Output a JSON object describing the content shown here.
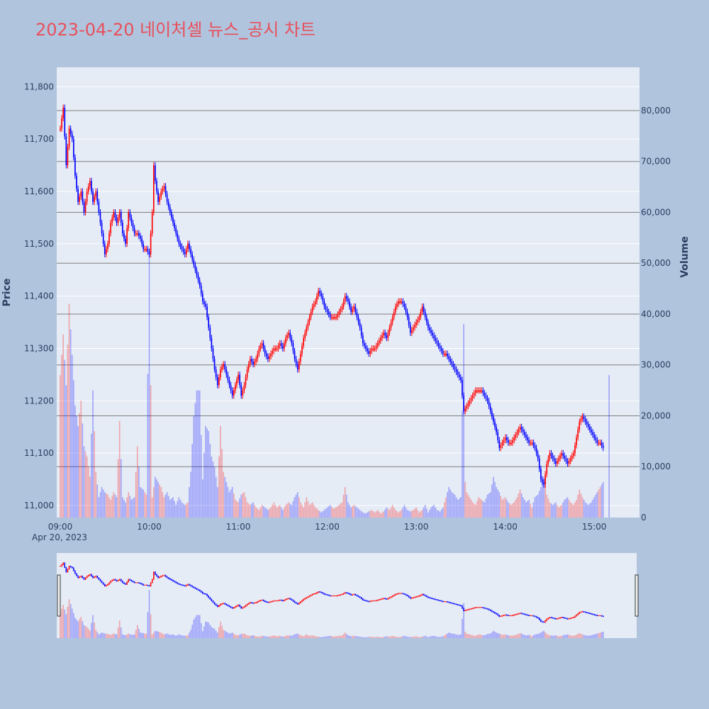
{
  "title": "2023-04-20 네이처셀 뉴스_공시 차트",
  "colors": {
    "background": "#b0c4de",
    "plot_bg": "#e5ecf6",
    "up": "#ff0000",
    "down": "#0000ff",
    "grid": "#ffffff",
    "vol_grid": "#808080",
    "title": "#e8505b"
  },
  "chart_data": {
    "type": "candlestick+volume",
    "date_label": "Apr 20, 2023",
    "x_ticks": [
      "09:00",
      "10:00",
      "11:00",
      "12:00",
      "13:00",
      "14:00",
      "15:00"
    ],
    "ylabel": "Price",
    "y2label": "Volume",
    "price_ticks": [
      11000,
      11100,
      11200,
      11300,
      11400,
      11500,
      11600,
      11700,
      11800
    ],
    "price_tick_labels": [
      "11,000",
      "11,100",
      "11,200",
      "11,300",
      "11,400",
      "11,500",
      "11,600",
      "11,700",
      "11,800"
    ],
    "volume_ticks": [
      0,
      10000,
      20000,
      30000,
      40000,
      50000,
      60000,
      70000,
      80000
    ],
    "volume_tick_labels": [
      "0",
      "10,000",
      "20,000",
      "30,000",
      "40,000",
      "50,000",
      "60,000",
      "70,000",
      "80,000"
    ],
    "price_range": [
      10977,
      11837
    ],
    "volume_range": [
      0,
      88500
    ],
    "session_minutes": [
      0,
      380
    ],
    "price_keypoints": [
      [
        0,
        11720
      ],
      [
        2,
        11760
      ],
      [
        4,
        11650
      ],
      [
        6,
        11720
      ],
      [
        8,
        11700
      ],
      [
        10,
        11630
      ],
      [
        12,
        11580
      ],
      [
        14,
        11600
      ],
      [
        16,
        11560
      ],
      [
        18,
        11600
      ],
      [
        20,
        11620
      ],
      [
        22,
        11580
      ],
      [
        24,
        11600
      ],
      [
        26,
        11560
      ],
      [
        28,
        11520
      ],
      [
        30,
        11480
      ],
      [
        32,
        11500
      ],
      [
        34,
        11540
      ],
      [
        36,
        11560
      ],
      [
        38,
        11540
      ],
      [
        40,
        11560
      ],
      [
        42,
        11520
      ],
      [
        44,
        11500
      ],
      [
        46,
        11560
      ],
      [
        48,
        11540
      ],
      [
        50,
        11520
      ],
      [
        52,
        11520
      ],
      [
        54,
        11510
      ],
      [
        56,
        11490
      ],
      [
        58,
        11490
      ],
      [
        60,
        11480
      ],
      [
        62,
        11560
      ],
      [
        63,
        11650
      ],
      [
        64,
        11620
      ],
      [
        66,
        11580
      ],
      [
        68,
        11600
      ],
      [
        70,
        11610
      ],
      [
        72,
        11580
      ],
      [
        74,
        11560
      ],
      [
        76,
        11540
      ],
      [
        78,
        11520
      ],
      [
        80,
        11500
      ],
      [
        82,
        11490
      ],
      [
        84,
        11480
      ],
      [
        86,
        11500
      ],
      [
        88,
        11480
      ],
      [
        90,
        11460
      ],
      [
        92,
        11440
      ],
      [
        94,
        11420
      ],
      [
        96,
        11390
      ],
      [
        98,
        11380
      ],
      [
        100,
        11340
      ],
      [
        102,
        11300
      ],
      [
        104,
        11260
      ],
      [
        106,
        11230
      ],
      [
        108,
        11260
      ],
      [
        110,
        11270
      ],
      [
        112,
        11250
      ],
      [
        114,
        11230
      ],
      [
        116,
        11210
      ],
      [
        118,
        11230
      ],
      [
        120,
        11250
      ],
      [
        122,
        11210
      ],
      [
        124,
        11230
      ],
      [
        126,
        11260
      ],
      [
        128,
        11280
      ],
      [
        130,
        11270
      ],
      [
        132,
        11280
      ],
      [
        134,
        11300
      ],
      [
        136,
        11310
      ],
      [
        138,
        11290
      ],
      [
        140,
        11280
      ],
      [
        142,
        11290
      ],
      [
        144,
        11300
      ],
      [
        146,
        11300
      ],
      [
        148,
        11310
      ],
      [
        150,
        11300
      ],
      [
        152,
        11320
      ],
      [
        154,
        11330
      ],
      [
        156,
        11310
      ],
      [
        158,
        11280
      ],
      [
        160,
        11260
      ],
      [
        162,
        11290
      ],
      [
        164,
        11320
      ],
      [
        166,
        11340
      ],
      [
        168,
        11360
      ],
      [
        170,
        11380
      ],
      [
        172,
        11390
      ],
      [
        174,
        11410
      ],
      [
        176,
        11400
      ],
      [
        178,
        11380
      ],
      [
        180,
        11370
      ],
      [
        182,
        11360
      ],
      [
        184,
        11360
      ],
      [
        186,
        11360
      ],
      [
        188,
        11370
      ],
      [
        190,
        11380
      ],
      [
        192,
        11400
      ],
      [
        194,
        11390
      ],
      [
        196,
        11370
      ],
      [
        198,
        11380
      ],
      [
        200,
        11360
      ],
      [
        202,
        11340
      ],
      [
        204,
        11310
      ],
      [
        206,
        11300
      ],
      [
        208,
        11290
      ],
      [
        210,
        11300
      ],
      [
        212,
        11300
      ],
      [
        214,
        11310
      ],
      [
        216,
        11320
      ],
      [
        218,
        11330
      ],
      [
        220,
        11320
      ],
      [
        222,
        11340
      ],
      [
        224,
        11360
      ],
      [
        226,
        11380
      ],
      [
        228,
        11390
      ],
      [
        230,
        11390
      ],
      [
        232,
        11380
      ],
      [
        234,
        11360
      ],
      [
        236,
        11330
      ],
      [
        238,
        11340
      ],
      [
        240,
        11350
      ],
      [
        242,
        11360
      ],
      [
        244,
        11380
      ],
      [
        246,
        11360
      ],
      [
        248,
        11340
      ],
      [
        250,
        11330
      ],
      [
        252,
        11320
      ],
      [
        254,
        11310
      ],
      [
        256,
        11300
      ],
      [
        258,
        11290
      ],
      [
        260,
        11290
      ],
      [
        262,
        11280
      ],
      [
        264,
        11270
      ],
      [
        266,
        11260
      ],
      [
        268,
        11250
      ],
      [
        270,
        11240
      ],
      [
        272,
        11180
      ],
      [
        274,
        11190
      ],
      [
        276,
        11200
      ],
      [
        278,
        11210
      ],
      [
        280,
        11220
      ],
      [
        282,
        11220
      ],
      [
        284,
        11220
      ],
      [
        286,
        11210
      ],
      [
        288,
        11200
      ],
      [
        290,
        11180
      ],
      [
        292,
        11160
      ],
      [
        294,
        11140
      ],
      [
        296,
        11110
      ],
      [
        298,
        11120
      ],
      [
        300,
        11130
      ],
      [
        302,
        11120
      ],
      [
        304,
        11120
      ],
      [
        306,
        11130
      ],
      [
        308,
        11140
      ],
      [
        310,
        11150
      ],
      [
        312,
        11140
      ],
      [
        314,
        11130
      ],
      [
        316,
        11120
      ],
      [
        318,
        11120
      ],
      [
        320,
        11110
      ],
      [
        322,
        11090
      ],
      [
        324,
        11050
      ],
      [
        326,
        11040
      ],
      [
        328,
        11080
      ],
      [
        330,
        11100
      ],
      [
        332,
        11090
      ],
      [
        334,
        11080
      ],
      [
        336,
        11090
      ],
      [
        338,
        11100
      ],
      [
        340,
        11090
      ],
      [
        342,
        11080
      ],
      [
        344,
        11090
      ],
      [
        346,
        11100
      ],
      [
        348,
        11130
      ],
      [
        350,
        11160
      ],
      [
        352,
        11170
      ],
      [
        354,
        11160
      ],
      [
        356,
        11150
      ],
      [
        358,
        11140
      ],
      [
        360,
        11130
      ],
      [
        362,
        11120
      ],
      [
        364,
        11120
      ],
      [
        366,
        11110
      ]
    ],
    "volume_keypoints": [
      [
        0,
        28000
      ],
      [
        2,
        36000
      ],
      [
        4,
        26000
      ],
      [
        6,
        42000
      ],
      [
        8,
        32000
      ],
      [
        10,
        22000
      ],
      [
        12,
        18000
      ],
      [
        14,
        23000
      ],
      [
        16,
        14000
      ],
      [
        18,
        12000
      ],
      [
        20,
        8000
      ],
      [
        22,
        25000
      ],
      [
        24,
        9000
      ],
      [
        26,
        4000
      ],
      [
        28,
        6000
      ],
      [
        30,
        5000
      ],
      [
        32,
        4500
      ],
      [
        34,
        3500
      ],
      [
        36,
        5000
      ],
      [
        38,
        4000
      ],
      [
        40,
        19000
      ],
      [
        42,
        4000
      ],
      [
        44,
        3000
      ],
      [
        46,
        5000
      ],
      [
        48,
        3500
      ],
      [
        50,
        4000
      ],
      [
        52,
        14000
      ],
      [
        54,
        6000
      ],
      [
        56,
        5500
      ],
      [
        58,
        4500
      ],
      [
        60,
        52000
      ],
      [
        61,
        26000
      ],
      [
        62,
        4000
      ],
      [
        64,
        8000
      ],
      [
        66,
        7000
      ],
      [
        68,
        6000
      ],
      [
        70,
        4000
      ],
      [
        72,
        5000
      ],
      [
        74,
        3500
      ],
      [
        76,
        4000
      ],
      [
        78,
        2500
      ],
      [
        80,
        4000
      ],
      [
        82,
        3000
      ],
      [
        84,
        2500
      ],
      [
        86,
        3000
      ],
      [
        88,
        9000
      ],
      [
        90,
        20000
      ],
      [
        92,
        25000
      ],
      [
        94,
        25000
      ],
      [
        96,
        7500
      ],
      [
        98,
        18000
      ],
      [
        100,
        17000
      ],
      [
        102,
        12000
      ],
      [
        104,
        10000
      ],
      [
        106,
        6000
      ],
      [
        108,
        18000
      ],
      [
        110,
        9000
      ],
      [
        112,
        7000
      ],
      [
        114,
        5000
      ],
      [
        116,
        6000
      ],
      [
        118,
        3500
      ],
      [
        120,
        3000
      ],
      [
        122,
        4500
      ],
      [
        124,
        5000
      ],
      [
        126,
        3000
      ],
      [
        128,
        2500
      ],
      [
        130,
        3000
      ],
      [
        132,
        2000
      ],
      [
        134,
        1500
      ],
      [
        136,
        2500
      ],
      [
        138,
        2000
      ],
      [
        140,
        1500
      ],
      [
        142,
        2000
      ],
      [
        144,
        3000
      ],
      [
        146,
        2000
      ],
      [
        148,
        2500
      ],
      [
        150,
        1500
      ],
      [
        152,
        2500
      ],
      [
        154,
        3000
      ],
      [
        156,
        2500
      ],
      [
        158,
        4000
      ],
      [
        160,
        5000
      ],
      [
        162,
        3000
      ],
      [
        164,
        2000
      ],
      [
        166,
        4000
      ],
      [
        168,
        2500
      ],
      [
        170,
        3000
      ],
      [
        172,
        2000
      ],
      [
        174,
        1500
      ],
      [
        176,
        1000
      ],
      [
        178,
        1500
      ],
      [
        180,
        2000
      ],
      [
        182,
        2500
      ],
      [
        184,
        1800
      ],
      [
        186,
        2000
      ],
      [
        188,
        2500
      ],
      [
        190,
        3000
      ],
      [
        192,
        6000
      ],
      [
        194,
        3000
      ],
      [
        196,
        2000
      ],
      [
        198,
        2500
      ],
      [
        200,
        2000
      ],
      [
        202,
        1500
      ],
      [
        204,
        1000
      ],
      [
        206,
        800
      ],
      [
        208,
        1200
      ],
      [
        210,
        1500
      ],
      [
        212,
        1000
      ],
      [
        214,
        1500
      ],
      [
        216,
        800
      ],
      [
        218,
        1200
      ],
      [
        220,
        2000
      ],
      [
        222,
        1500
      ],
      [
        224,
        2500
      ],
      [
        226,
        1500
      ],
      [
        228,
        1000
      ],
      [
        230,
        1500
      ],
      [
        232,
        2500
      ],
      [
        234,
        1500
      ],
      [
        236,
        1200
      ],
      [
        238,
        1500
      ],
      [
        240,
        2000
      ],
      [
        242,
        1000
      ],
      [
        244,
        1500
      ],
      [
        246,
        2500
      ],
      [
        248,
        1000
      ],
      [
        250,
        2000
      ],
      [
        252,
        2500
      ],
      [
        254,
        1500
      ],
      [
        256,
        1200
      ],
      [
        258,
        2000
      ],
      [
        260,
        4000
      ],
      [
        262,
        6000
      ],
      [
        264,
        5000
      ],
      [
        266,
        4500
      ],
      [
        268,
        3500
      ],
      [
        270,
        4000
      ],
      [
        272,
        38000
      ],
      [
        273,
        7000
      ],
      [
        274,
        5000
      ],
      [
        276,
        4000
      ],
      [
        278,
        3000
      ],
      [
        280,
        2500
      ],
      [
        282,
        4000
      ],
      [
        284,
        3500
      ],
      [
        286,
        3000
      ],
      [
        288,
        4500
      ],
      [
        290,
        5000
      ],
      [
        292,
        8000
      ],
      [
        294,
        6000
      ],
      [
        296,
        5000
      ],
      [
        298,
        3500
      ],
      [
        300,
        4000
      ],
      [
        302,
        3000
      ],
      [
        304,
        2500
      ],
      [
        306,
        3000
      ],
      [
        308,
        4000
      ],
      [
        310,
        5500
      ],
      [
        312,
        4000
      ],
      [
        314,
        3000
      ],
      [
        316,
        3500
      ],
      [
        318,
        2000
      ],
      [
        320,
        4000
      ],
      [
        322,
        4500
      ],
      [
        324,
        6000
      ],
      [
        326,
        8000
      ],
      [
        328,
        4500
      ],
      [
        330,
        3000
      ],
      [
        332,
        2500
      ],
      [
        334,
        3000
      ],
      [
        336,
        2000
      ],
      [
        338,
        2500
      ],
      [
        340,
        3500
      ],
      [
        342,
        4000
      ],
      [
        344,
        3000
      ],
      [
        346,
        2500
      ],
      [
        348,
        3500
      ],
      [
        350,
        5500
      ],
      [
        352,
        4000
      ],
      [
        354,
        3000
      ],
      [
        356,
        2500
      ],
      [
        358,
        3000
      ],
      [
        360,
        4000
      ],
      [
        362,
        5000
      ],
      [
        364,
        6000
      ],
      [
        366,
        7000
      ],
      [
        370,
        28000
      ]
    ]
  },
  "range_slider": {
    "enabled": true
  }
}
